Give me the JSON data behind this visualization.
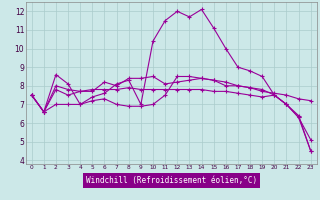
{
  "xlabel": "Windchill (Refroidissement éolien,°C)",
  "background_color": "#cce8e8",
  "grid_color": "#aacccc",
  "line_color": "#990099",
  "xlabel_bg": "#880088",
  "xlim": [
    -0.5,
    23.5
  ],
  "ylim": [
    3.8,
    12.5
  ],
  "yticks": [
    4,
    5,
    6,
    7,
    8,
    9,
    10,
    11,
    12
  ],
  "xticks": [
    0,
    1,
    2,
    3,
    4,
    5,
    6,
    7,
    8,
    9,
    10,
    11,
    12,
    13,
    14,
    15,
    16,
    17,
    18,
    19,
    20,
    21,
    22,
    23
  ],
  "series": [
    [
      7.5,
      6.6,
      8.6,
      8.1,
      7.0,
      7.4,
      7.6,
      8.1,
      8.3,
      7.0,
      10.4,
      11.5,
      12.0,
      11.7,
      12.1,
      11.1,
      10.0,
      9.0,
      8.8,
      8.5,
      7.5,
      7.0,
      6.3,
      5.1
    ],
    [
      7.5,
      6.6,
      8.0,
      7.8,
      7.7,
      7.7,
      8.2,
      8.0,
      8.4,
      8.4,
      8.5,
      8.1,
      8.2,
      8.3,
      8.4,
      8.3,
      8.2,
      8.0,
      7.9,
      7.7,
      7.6,
      7.5,
      7.3,
      7.2
    ],
    [
      7.5,
      6.6,
      7.8,
      7.5,
      7.7,
      7.8,
      7.8,
      7.8,
      7.9,
      7.8,
      7.8,
      7.8,
      7.8,
      7.8,
      7.8,
      7.7,
      7.7,
      7.6,
      7.5,
      7.4,
      7.5,
      7.0,
      6.4,
      4.5
    ],
    [
      7.5,
      6.6,
      7.0,
      7.0,
      7.0,
      7.2,
      7.3,
      7.0,
      6.9,
      6.9,
      7.0,
      7.5,
      8.5,
      8.5,
      8.4,
      8.3,
      8.0,
      8.0,
      7.9,
      7.8,
      7.5,
      7.0,
      6.3,
      4.5
    ]
  ]
}
